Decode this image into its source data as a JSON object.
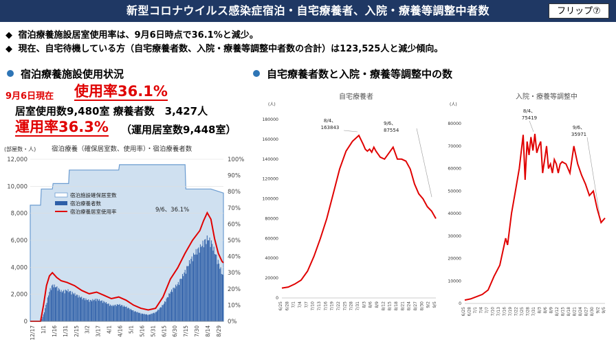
{
  "header": {
    "title": "新型コロナウイルス感染症宿泊・自宅療養者、入院・療養等調整中者数",
    "flip_label": "フリップ⑦"
  },
  "bullets": [
    {
      "mark": "◆",
      "text": "宿泊療養施設居室使用率は、9月6日時点で36.1%と減少。"
    },
    {
      "mark": "◆",
      "text": "現在、自宅待機している方（自宅療養者数、入院・療養等調整中者数の合計）は123,525人と減少傾向。"
    }
  ],
  "left_section": {
    "title": "宿泊療養施設使用状況",
    "as_of": "9月6日現在",
    "usage_rate": "使用率36.1%",
    "rooms_used": "居室使用数9,480室 療養者数　3,427人",
    "operating_rate": "運用率36.3%",
    "operating_rooms": "（運用居室数9,448室）"
  },
  "right_section": {
    "title": "自宅療養者数と入院・療養等調整中の数"
  },
  "colors": {
    "header_bg": "#1f3864",
    "accent_red": "#e00000",
    "bullet_blue": "#2e75b6",
    "bar_blue": "#2e5fa8",
    "area_fill": "#cfe0f0",
    "area_line": "#6a9bd0"
  },
  "chart_data": [
    {
      "type": "bar",
      "title": "宿泊療養（確保居室数、使用率）・宿泊療養者数",
      "ylabel": "(部屋数・人)",
      "ylim": [
        0,
        12000
      ],
      "y_ticks": [
        "0",
        "2,000",
        "4,000",
        "6,000",
        "8,000",
        "10,000",
        "12,000"
      ],
      "y2lim": [
        0,
        100
      ],
      "y2_ticks": [
        "0%",
        "10%",
        "20%",
        "30%",
        "40%",
        "50%",
        "60%",
        "70%",
        "80%",
        "90%",
        "100%"
      ],
      "x_ticks": [
        "12/17",
        "1/1",
        "1/16",
        "1/31",
        "2/15",
        "3/2",
        "3/17",
        "4/1",
        "4/16",
        "5/1",
        "5/16",
        "5/31",
        "6/15",
        "6/30",
        "7/15",
        "7/30",
        "8/14",
        "8/29"
      ],
      "legend": [
        "宿泊施設確保居室数",
        "宿泊療養者数",
        "宿泊療養居室使用率"
      ],
      "legend_position": "upper-left",
      "annotation": "9/6、36.1%",
      "series": [
        {
          "name": "宿泊施設確保居室数",
          "kind": "area",
          "x": [
            0,
            8,
            14,
            15,
            30,
            31,
            52,
            53,
            120,
            121,
            210,
            211,
            245,
            262
          ],
          "values": [
            8600,
            8600,
            8600,
            9800,
            9800,
            10200,
            10200,
            11200,
            11200,
            11600,
            11600,
            9800,
            9800,
            9500
          ]
        },
        {
          "name": "宿泊療養者数",
          "kind": "bar",
          "x": [
            0,
            14,
            18,
            22,
            26,
            30,
            36,
            42,
            50,
            60,
            70,
            80,
            90,
            100,
            110,
            120,
            130,
            140,
            150,
            160,
            170,
            180,
            190,
            200,
            210,
            215,
            220,
            225,
            230,
            235,
            240,
            245,
            250,
            255,
            260,
            262
          ],
          "values": [
            0,
            0,
            600,
            1500,
            2400,
            2800,
            2600,
            2300,
            2400,
            2100,
            1800,
            1600,
            1700,
            1500,
            1200,
            1300,
            1100,
            800,
            600,
            500,
            700,
            1300,
            2300,
            2900,
            3900,
            4500,
            5000,
            5400,
            5700,
            6100,
            6400,
            6100,
            5300,
            4500,
            3600,
            3400
          ]
        },
        {
          "name": "宿泊療養居室使用率",
          "kind": "line",
          "x": [
            0,
            14,
            18,
            22,
            26,
            30,
            36,
            42,
            50,
            60,
            70,
            80,
            90,
            100,
            110,
            120,
            130,
            140,
            150,
            160,
            170,
            180,
            190,
            200,
            210,
            220,
            230,
            235,
            240,
            245,
            250,
            255,
            260,
            262
          ],
          "values": [
            0,
            0,
            10,
            22,
            28,
            30,
            27,
            25,
            24,
            22,
            19,
            17,
            18,
            16,
            14,
            15,
            13,
            10,
            8,
            7,
            8,
            15,
            26,
            33,
            42,
            50,
            56,
            62,
            67,
            63,
            51,
            42,
            37,
            36.1
          ]
        }
      ]
    },
    {
      "type": "line",
      "title": "自宅療養者",
      "ylabel": "(人)",
      "ylim": [
        0,
        180000
      ],
      "y_ticks": [
        "0",
        "20000",
        "40000",
        "60000",
        "80000",
        "100000",
        "120000",
        "140000",
        "160000",
        "180000"
      ],
      "x_ticks": [
        "6/25",
        "6/28",
        "7/1",
        "7/4",
        "7/7",
        "7/10",
        "7/13",
        "7/16",
        "7/19",
        "7/22",
        "7/25",
        "7/28",
        "7/31",
        "8/3",
        "8/6",
        "8/9",
        "8/12",
        "8/15",
        "8/18",
        "8/21",
        "8/24",
        "8/27",
        "8/30",
        "9/2",
        "9/5"
      ],
      "annotations": [
        {
          "label": "8/4、",
          "value": "163843"
        },
        {
          "label": "9/6、",
          "value": "87554"
        }
      ],
      "series": [
        {
          "name": "自宅療養者",
          "x": [
            0,
            3,
            6,
            9,
            12,
            15,
            18,
            21,
            24,
            27,
            30,
            33,
            36,
            38,
            39,
            40,
            41,
            42,
            43,
            44,
            45,
            46,
            48,
            50,
            52,
            54,
            56,
            58,
            60,
            62,
            64,
            66,
            68,
            70,
            72
          ],
          "values": [
            10000,
            11000,
            14000,
            18000,
            27000,
            42000,
            60000,
            80000,
            105000,
            130000,
            148000,
            158000,
            163843,
            155000,
            150000,
            148000,
            150000,
            147000,
            152000,
            148000,
            145000,
            142000,
            140000,
            146000,
            152000,
            140000,
            140000,
            138000,
            130000,
            115000,
            105000,
            100000,
            92000,
            87554,
            80000
          ]
        }
      ]
    },
    {
      "type": "line",
      "title": "入院・療養等調整中",
      "ylabel": "(人)",
      "ylim": [
        0,
        80000
      ],
      "y_ticks": [
        "0",
        "10000",
        "20000",
        "30000",
        "40000",
        "50000",
        "60000",
        "70000",
        "80000"
      ],
      "x_ticks": [
        "6/25",
        "6/28",
        "7/1",
        "7/4",
        "7/7",
        "7/10",
        "7/13",
        "7/16",
        "7/19",
        "7/22",
        "7/25",
        "7/28",
        "7/31",
        "8/3",
        "8/6",
        "8/9",
        "8/12",
        "8/15",
        "8/18",
        "8/21",
        "8/24",
        "8/27",
        "8/30",
        "9/2",
        "9/5"
      ],
      "annotations": [
        {
          "label": "8/4、",
          "value": "75419"
        },
        {
          "label": "9/6、",
          "value": "35971"
        }
      ],
      "series": [
        {
          "name": "入院・療養等調整中",
          "x": [
            0,
            3,
            6,
            9,
            12,
            15,
            18,
            21,
            22,
            24,
            26,
            28,
            30,
            31,
            32,
            33,
            34,
            35,
            36,
            37,
            38,
            39,
            40,
            41,
            42,
            43,
            44,
            45,
            46,
            47,
            48,
            49,
            50,
            52,
            54,
            56,
            58,
            60,
            62,
            64,
            66,
            68,
            70,
            72
          ],
          "values": [
            1500,
            2000,
            3000,
            4000,
            6000,
            12000,
            17000,
            29000,
            26000,
            40000,
            50000,
            60000,
            75000,
            55000,
            72000,
            66000,
            74000,
            68000,
            75419,
            67000,
            70000,
            72000,
            58000,
            64000,
            70000,
            60000,
            62000,
            58000,
            64000,
            62000,
            58000,
            62000,
            63000,
            62000,
            58000,
            70000,
            62000,
            57000,
            53000,
            48000,
            50000,
            42000,
            35971,
            38000
          ]
        }
      ]
    }
  ]
}
